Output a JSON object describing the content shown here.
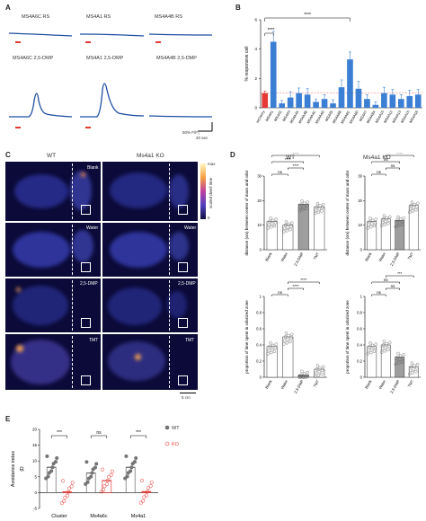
{
  "panels": {
    "a": "A",
    "b": "B",
    "c": "C",
    "d": "D",
    "e": "E"
  },
  "panel_a": {
    "traces": [
      {
        "label": "MS4A6C RS",
        "peak": 0
      },
      {
        "label": "MS4A1 RS",
        "peak": 0
      },
      {
        "label": "MS4A4B RS",
        "peak": 0
      },
      {
        "label": "MS4A6C 2,5-DMP",
        "peak": 0.72
      },
      {
        "label": "MS4A1 2,5-DMP",
        "peak": 0.95
      },
      {
        "label": "MS4A4B 2,5-DMP",
        "peak": 0
      }
    ],
    "scale_y": "50% F/F₀",
    "scale_x": "20 sec"
  },
  "panel_b": {
    "ylabel": "% responsive cell",
    "sig_top": "****",
    "sig_left": "****",
    "colors": {
      "control": "#e53935",
      "ms4a": "#3b7fd4"
    },
    "chart_data": {
      "type": "bar",
      "categories": [
        "mCherry",
        "MS4A1",
        "MS4A2",
        "MS4A3",
        "MS4A4A",
        "MS4A4B",
        "MS4A4C",
        "MS4A4D",
        "MS4A5",
        "MS4A6B",
        "MS4A6C",
        "MS4A6D",
        "MS4A7",
        "MS4A8A",
        "MS4A10",
        "MS4A12",
        "MS4A13",
        "MS4A15",
        "MS4A16"
      ],
      "values": [
        1.0,
        4.5,
        0.3,
        0.7,
        1.0,
        0.9,
        0.4,
        0.6,
        0.3,
        1.4,
        3.3,
        1.3,
        0.6,
        0.2,
        1.0,
        0.9,
        0.6,
        0.8,
        0.9
      ],
      "errors": [
        0.15,
        0.7,
        0.2,
        0.4,
        0.35,
        0.4,
        0.2,
        0.3,
        0.25,
        0.5,
        0.5,
        0.5,
        0.3,
        0.2,
        0.4,
        0.35,
        0.3,
        0.4,
        0.35
      ],
      "ylim": [
        0,
        6
      ]
    }
  },
  "panel_c": {
    "col_wt": "WT",
    "col_ko": "Ms4a1 KO",
    "rows": [
      "Blank",
      "Water",
      "2,5-DMP",
      "TMT"
    ],
    "colorbar_max": "max",
    "colorbar_min": "0",
    "colorbar_label": "scaled dwell time",
    "scalebar": "5 cm"
  },
  "panel_d": {
    "col_wt": "WT",
    "col_ko": "Ms4a1 KO",
    "top_ylabel": "distance (cm) between center of mass and odor",
    "bottom_ylabel": "proportion of time spent in odorized zone",
    "categories": [
      "Blank",
      "Water",
      "2,5-DMP",
      "TMT"
    ],
    "chart_data": [
      {
        "type": "bar",
        "title": "WT",
        "categories": [
          "Blank",
          "Water",
          "2,5-DMP",
          "TMT"
        ],
        "values": [
          11.5,
          10.0,
          18.5,
          17.5
        ],
        "ylim": [
          0,
          30
        ],
        "yticks": [
          0,
          10,
          20,
          30
        ],
        "sig": [
          {
            "from": 0,
            "to": 1,
            "text": "ns"
          },
          {
            "from": 1,
            "to": 2,
            "text": "****"
          },
          {
            "from": 0,
            "to": 2,
            "text": "****"
          },
          {
            "from": 0,
            "to": 3,
            "text": "****"
          }
        ]
      },
      {
        "type": "bar",
        "title": "Ms4a1 KO",
        "categories": [
          "Blank",
          "Water",
          "2,5-DMP",
          "TMT"
        ],
        "values": [
          11.5,
          12.5,
          12.0,
          18.0
        ],
        "ylim": [
          0,
          30
        ],
        "yticks": [
          0,
          10,
          20,
          30
        ],
        "sig": [
          {
            "from": 0,
            "to": 1,
            "text": "ns"
          },
          {
            "from": 1,
            "to": 2,
            "text": "ns"
          },
          {
            "from": 0,
            "to": 2,
            "text": "ns"
          },
          {
            "from": 1,
            "to": 3,
            "text": "****"
          }
        ]
      },
      {
        "type": "bar",
        "categories": [
          "Blank",
          "Water",
          "2,5-DMP",
          "TMT"
        ],
        "values": [
          0.38,
          0.5,
          0.03,
          0.1
        ],
        "ylim": [
          0,
          1.0
        ],
        "yticks": [
          0,
          0.2,
          0.4,
          0.6,
          0.8,
          1.0
        ],
        "sig": [
          {
            "from": 0,
            "to": 1,
            "text": "ns"
          },
          {
            "from": 1,
            "to": 2,
            "text": "****"
          },
          {
            "from": 1,
            "to": 3,
            "text": "****"
          }
        ]
      },
      {
        "type": "bar",
        "categories": [
          "Blank",
          "Water",
          "2,5-DMP",
          "TMT"
        ],
        "values": [
          0.38,
          0.4,
          0.25,
          0.13
        ],
        "ylim": [
          0,
          1.0
        ],
        "yticks": [
          0,
          0.2,
          0.4,
          0.6,
          0.8,
          1.0
        ],
        "sig": [
          {
            "from": 0,
            "to": 1,
            "text": "ns"
          },
          {
            "from": 1,
            "to": 2,
            "text": "ns"
          },
          {
            "from": 0,
            "to": 2,
            "text": "ns"
          },
          {
            "from": 1,
            "to": 3,
            "text": "***"
          }
        ]
      }
    ]
  },
  "panel_e": {
    "ylabel": "Avoidance index",
    "ylabel_sub": "(D",
    "legend": [
      {
        "name": "WT",
        "color": "#666666"
      },
      {
        "name": "KO",
        "color": "#e53935"
      }
    ],
    "chart_data": {
      "type": "bar",
      "categories": [
        "Cluster",
        "Ms4a6c",
        "Ms4a1"
      ],
      "series": [
        {
          "name": "WT",
          "values": [
            8.0,
            6.2,
            8.0
          ]
        },
        {
          "name": "KO",
          "values": [
            0.2,
            3.8,
            0.3
          ]
        }
      ],
      "sig": [
        "***",
        "ns",
        "***"
      ],
      "ylim": [
        -5,
        20
      ],
      "yticks": [
        -5,
        0,
        5,
        10,
        15,
        20
      ]
    }
  }
}
